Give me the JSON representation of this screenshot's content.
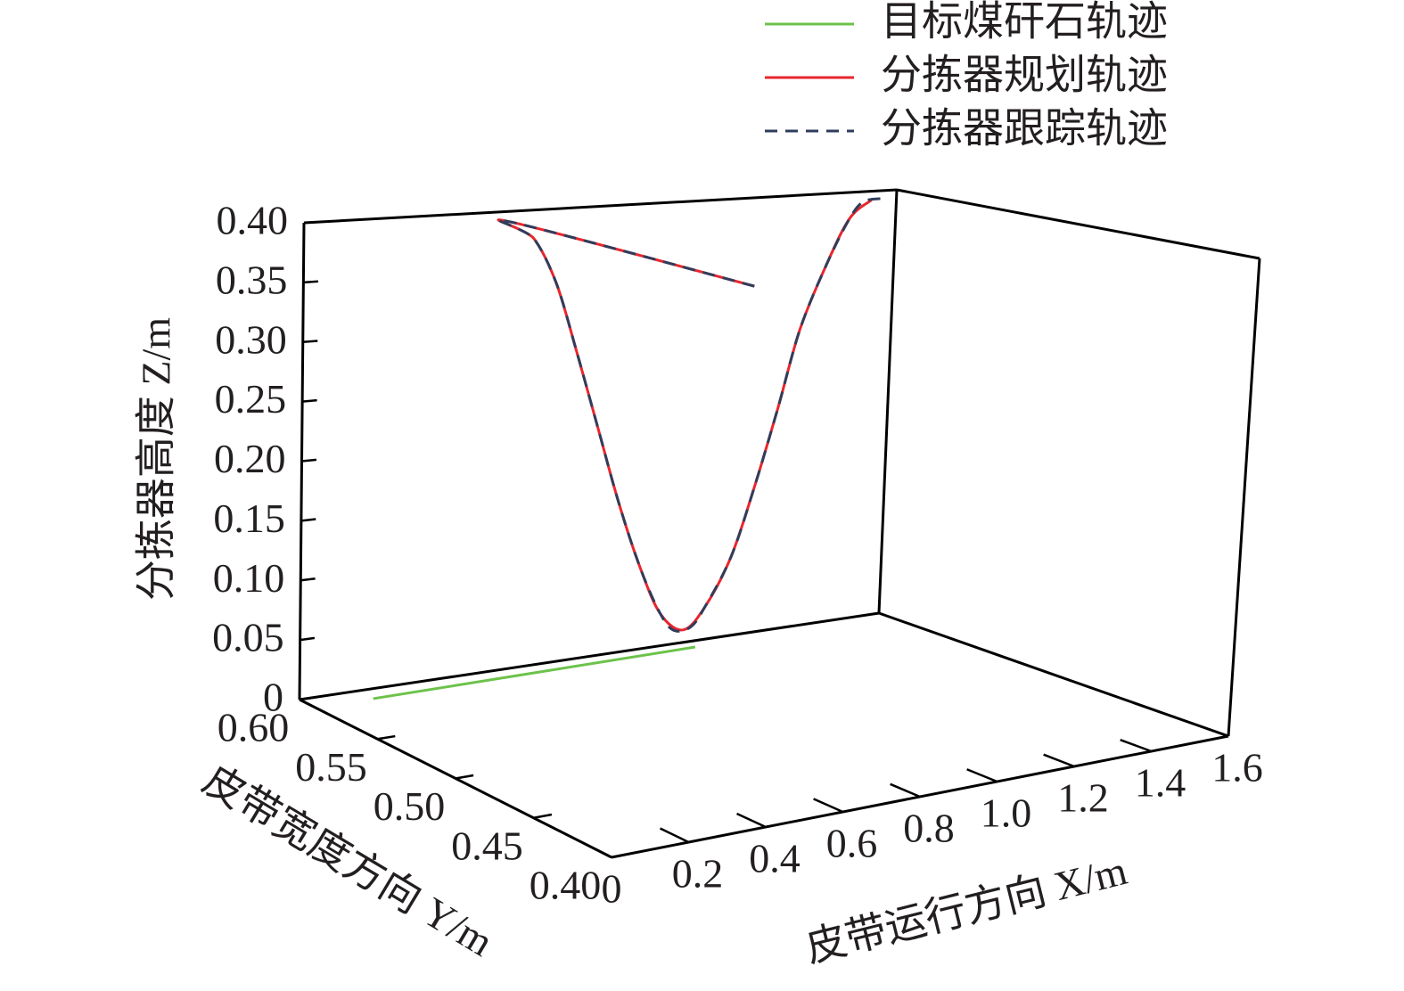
{
  "chart_data": {
    "type": "line3d",
    "x_label": "皮带运行方向 X/m",
    "y_label": "皮带宽度方向 Y/m",
    "z_label": "分拣器高度 Z/m",
    "xlim": [
      0,
      1.6
    ],
    "ylim": [
      0.4,
      0.6
    ],
    "zlim": [
      0,
      0.4
    ],
    "xticks": [
      0,
      0.2,
      0.4,
      0.6,
      0.8,
      {
        "value": 1,
        "label": "1.0"
      },
      1.2,
      1.4,
      1.6
    ],
    "yticks": [
      {
        "value": 0.4,
        "label": "0.40"
      },
      0.45,
      {
        "value": 0.5,
        "label": "0.50"
      },
      0.55,
      {
        "value": 0.6,
        "label": "0.60"
      }
    ],
    "zticks": [
      0,
      0.05,
      {
        "value": 0.1,
        "label": "0.10"
      },
      0.15,
      {
        "value": 0.2,
        "label": "0.20"
      },
      0.25,
      {
        "value": 0.3,
        "label": "0.30"
      },
      0.35,
      {
        "value": 0.4,
        "label": "0.40"
      }
    ],
    "grid": false,
    "legend": "top-right",
    "series": [
      {
        "name": "目标煤矸石轨迹",
        "color": "#6cc24a",
        "dash": false,
        "x": [
          0.16,
          1.06
        ],
        "y": [
          0.59,
          0.593
        ],
        "z": [
          0,
          0
        ]
      },
      {
        "name": "分拣器规划轨迹",
        "color": "#e8262d",
        "dash": false,
        "x": [
          0.55,
          0.48,
          0.52,
          0.56,
          0.59,
          0.63,
          0.67,
          0.71,
          0.74,
          0.78,
          0.86,
          0.95,
          1.03,
          1.11,
          1.19,
          1.28,
          1.36,
          1.44
        ],
        "y": [
          0.45,
          0.582,
          0.577,
          0.572,
          0.566,
          0.561,
          0.556,
          0.551,
          0.545,
          0.54,
          0.545,
          0.55,
          0.555,
          0.56,
          0.566,
          0.571,
          0.576,
          0.581
        ],
        "z": [
          0.4,
          0.4,
          0.387,
          0.35,
          0.295,
          0.23,
          0.165,
          0.11,
          0.073,
          0.06,
          0.073,
          0.11,
          0.165,
          0.23,
          0.295,
          0.35,
          0.387,
          0.4
        ]
      },
      {
        "name": "分拣器跟踪轨迹",
        "color": "#2f3d5c",
        "dash": true,
        "x": [
          0.55,
          0.48,
          0.52,
          0.56,
          0.59,
          0.63,
          0.67,
          0.71,
          0.74,
          0.76,
          0.81,
          0.86,
          0.95,
          1.03,
          1.11,
          1.19,
          1.28,
          1.36,
          1.41,
          1.48
        ],
        "y": [
          0.45,
          0.582,
          0.577,
          0.572,
          0.566,
          0.561,
          0.556,
          0.551,
          0.545,
          0.541,
          0.542,
          0.545,
          0.55,
          0.555,
          0.56,
          0.566,
          0.571,
          0.576,
          0.579,
          0.583
        ],
        "z": [
          0.4,
          0.4,
          0.387,
          0.35,
          0.295,
          0.23,
          0.165,
          0.11,
          0.073,
          0.06,
          0.06,
          0.073,
          0.11,
          0.165,
          0.23,
          0.295,
          0.35,
          0.387,
          0.4,
          0.4
        ]
      }
    ]
  }
}
